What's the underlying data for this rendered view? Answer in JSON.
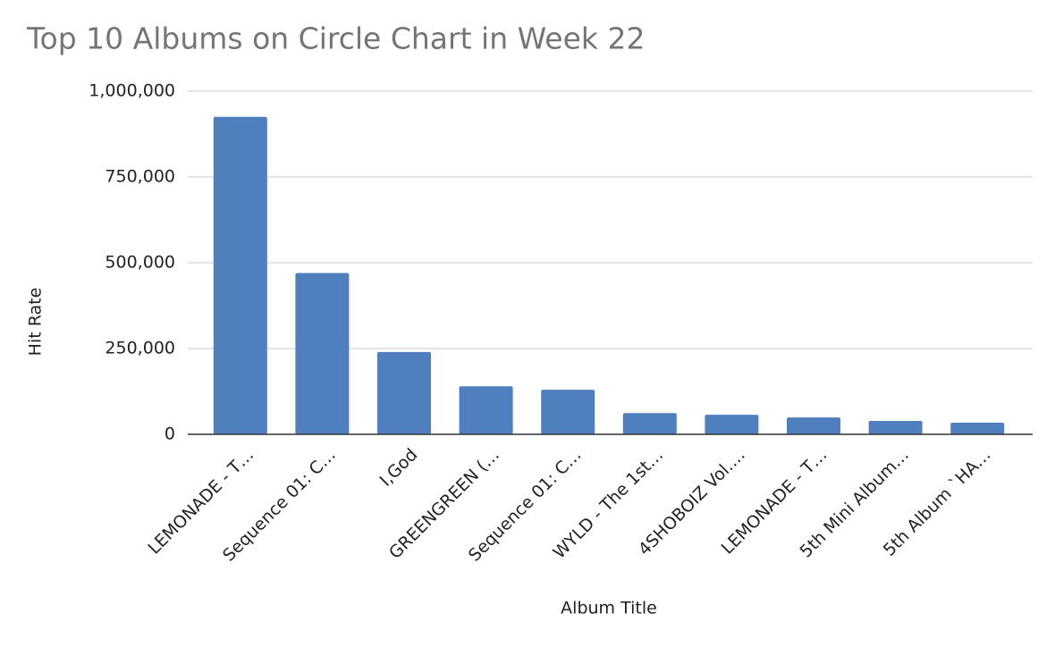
{
  "chart_data": {
    "type": "bar",
    "title": "Top 10 Albums on Circle Chart in Week 22",
    "x_label": "Album Title",
    "y_label": "Hit Rate",
    "categories": [
      "LEMONADE - T…",
      "Sequence 01: C…",
      "I,God",
      "GREENGREEN (…",
      "Sequence 01: C…",
      "WYLD - The 1st…",
      "4SHOBOIZ Vol.…",
      "LEMONADE - T…",
      "5th Mini Album…",
      "5th Album `HA…"
    ],
    "values": [
      925000,
      470000,
      240000,
      140000,
      130000,
      62000,
      57000,
      49000,
      39000,
      34000
    ],
    "color": "#4f7fbf",
    "ylim": [
      0,
      1000000
    ],
    "yticks": [
      0,
      {
        "value": 250000,
        "label": "250,000"
      },
      {
        "value": 500000,
        "label": "500,000"
      },
      {
        "value": 750000,
        "label": "750,000"
      },
      {
        "value": 1000000,
        "label": "1,000,000"
      }
    ],
    "grid": true
  }
}
